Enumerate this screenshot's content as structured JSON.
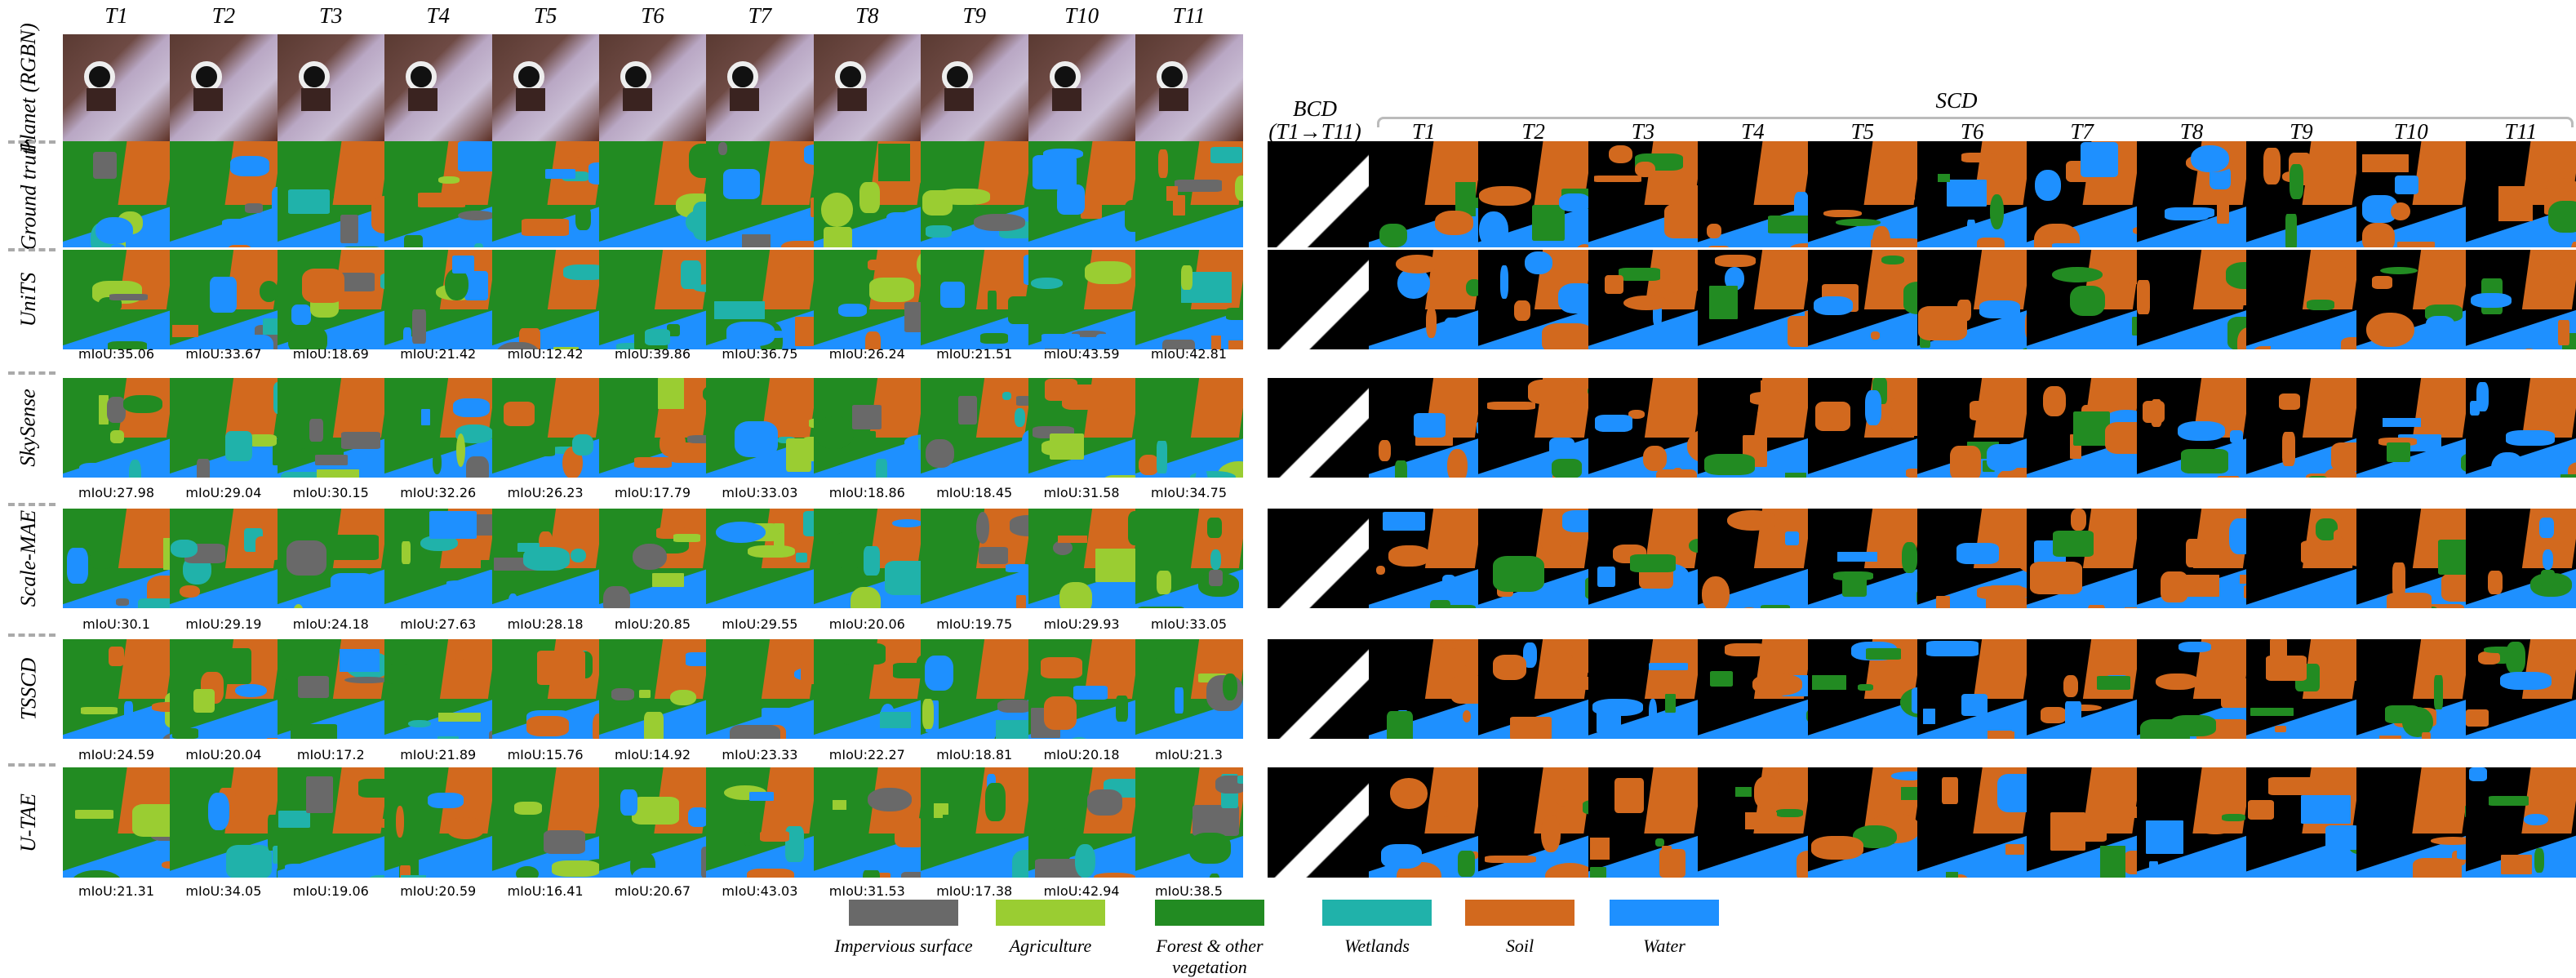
{
  "figure": {
    "time_labels": [
      "T1",
      "T2",
      "T3",
      "T4",
      "T5",
      "T6",
      "T7",
      "T8",
      "T9",
      "T10",
      "T11"
    ],
    "rows": [
      {
        "label": "Planet (RGBN)",
        "type": "imagery",
        "miou": []
      },
      {
        "label": "Ground truth",
        "type": "label",
        "miou": []
      },
      {
        "label": "UniTS",
        "type": "prediction",
        "miou": [
          "mIoU:35.06",
          "mIoU:33.67",
          "mIoU:18.69",
          "mIoU:21.42",
          "mIoU:12.42",
          "mIoU:39.86",
          "mIoU:36.75",
          "mIoU:26.24",
          "mIoU:21.51",
          "mIoU:43.59",
          "mIoU:42.81"
        ]
      },
      {
        "label": "SkySense",
        "type": "prediction",
        "miou": [
          "mIoU:27.98",
          "mIoU:29.04",
          "mIoU:30.15",
          "mIoU:32.26",
          "mIoU:26.23",
          "mIoU:17.79",
          "mIoU:33.03",
          "mIoU:18.86",
          "mIoU:18.45",
          "mIoU:31.58",
          "mIoU:34.75"
        ]
      },
      {
        "label": "Scale-MAE",
        "type": "prediction",
        "miou": [
          "mIoU:30.1",
          "mIoU:29.19",
          "mIoU:24.18",
          "mIoU:27.63",
          "mIoU:28.18",
          "mIoU:20.85",
          "mIoU:29.55",
          "mIoU:20.06",
          "mIoU:19.75",
          "mIoU:29.93",
          "mIoU:33.05"
        ]
      },
      {
        "label": "TSSCD",
        "type": "prediction",
        "miou": [
          "mIoU:24.59",
          "mIoU:20.04",
          "mIoU:17.2",
          "mIoU:21.89",
          "mIoU:15.76",
          "mIoU:14.92",
          "mIoU:23.33",
          "mIoU:22.27",
          "mIoU:18.81",
          "mIoU:20.18",
          "mIoU:21.3"
        ]
      },
      {
        "label": "U-TAE",
        "type": "prediction",
        "miou": [
          "mIoU:21.31",
          "mIoU:34.05",
          "mIoU:19.06",
          "mIoU:20.59",
          "mIoU:16.41",
          "mIoU:20.67",
          "mIoU:43.03",
          "mIoU:31.53",
          "mIoU:17.38",
          "mIoU:42.94",
          "mIoU:38.5"
        ]
      }
    ],
    "bcd": {
      "title": "BCD",
      "subtitle": "(T1→T11)"
    },
    "scd": {
      "title": "SCD"
    }
  },
  "legend": [
    {
      "label": "Impervious surface",
      "color": "#696969"
    },
    {
      "label": "Agriculture",
      "color": "#9acd32"
    },
    {
      "label": "Forest & other vegetation",
      "color": "#228b22"
    },
    {
      "label": "Wetlands",
      "color": "#20b2aa"
    },
    {
      "label": "Soil",
      "color": "#d2691e"
    },
    {
      "label": "Water",
      "color": "#1e90ff"
    }
  ]
}
